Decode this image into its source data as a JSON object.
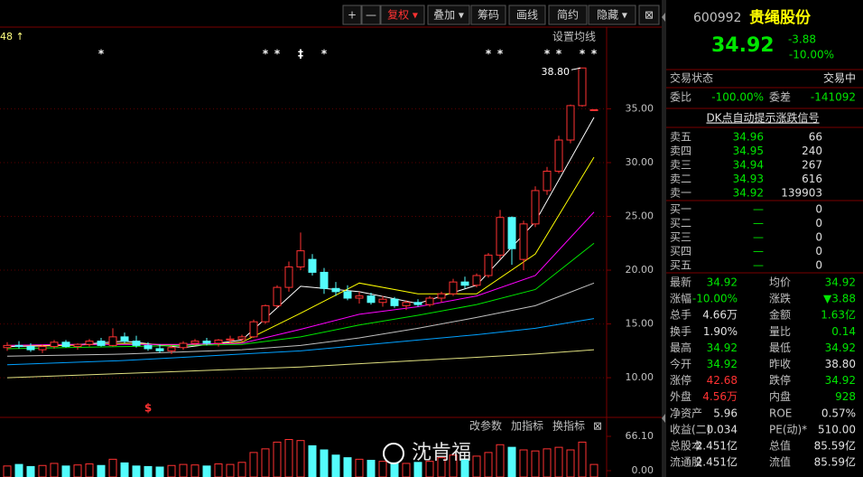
{
  "toolbar": [
    "+",
    "—",
    "复权 ▾",
    "叠加 ▾",
    "筹码",
    "画线",
    "简约",
    "隐藏 ▾",
    "⊠"
  ],
  "chart_data": {
    "type": "candlestick",
    "candles": [
      [
        12.8,
        13.3,
        12.5,
        13.0
      ],
      [
        13.0,
        13.4,
        12.7,
        12.9
      ],
      [
        12.9,
        13.2,
        12.4,
        12.6
      ],
      [
        12.6,
        13.1,
        12.3,
        12.9
      ],
      [
        12.9,
        13.5,
        12.7,
        13.3
      ],
      [
        13.3,
        13.5,
        12.8,
        12.9
      ],
      [
        12.9,
        13.2,
        12.6,
        13.1
      ],
      [
        13.1,
        13.6,
        12.9,
        13.4
      ],
      [
        13.4,
        13.7,
        12.9,
        13.0
      ],
      [
        13.0,
        14.6,
        12.9,
        13.8
      ],
      [
        13.8,
        14.2,
        13.2,
        13.4
      ],
      [
        13.4,
        13.9,
        12.8,
        13.0
      ],
      [
        13.0,
        13.3,
        12.5,
        12.7
      ],
      [
        12.7,
        13.1,
        12.3,
        12.5
      ],
      [
        12.5,
        13.0,
        12.2,
        12.8
      ],
      [
        12.8,
        13.4,
        12.6,
        13.2
      ],
      [
        13.2,
        13.6,
        13.0,
        13.4
      ],
      [
        13.4,
        13.7,
        13.0,
        13.2
      ],
      [
        13.2,
        13.6,
        12.9,
        13.5
      ],
      [
        13.5,
        13.9,
        13.2,
        13.6
      ],
      [
        13.6,
        14.0,
        13.3,
        13.8
      ],
      [
        13.8,
        15.4,
        13.7,
        15.2
      ],
      [
        15.2,
        16.8,
        15.0,
        16.7
      ],
      [
        16.7,
        18.6,
        16.5,
        18.4
      ],
      [
        18.4,
        20.8,
        18.0,
        20.3
      ],
      [
        20.3,
        23.5,
        20.0,
        21.8
      ],
      [
        21.0,
        21.5,
        19.5,
        19.8
      ],
      [
        19.8,
        20.2,
        17.8,
        18.3
      ],
      [
        18.3,
        18.9,
        17.6,
        18.0
      ],
      [
        18.0,
        18.6,
        17.2,
        17.4
      ],
      [
        17.4,
        18.0,
        16.9,
        17.6
      ],
      [
        17.6,
        17.9,
        16.8,
        17.0
      ],
      [
        17.0,
        17.6,
        16.6,
        17.3
      ],
      [
        17.3,
        17.5,
        16.5,
        16.7
      ],
      [
        16.7,
        17.2,
        16.3,
        17.0
      ],
      [
        17.0,
        17.3,
        16.6,
        16.8
      ],
      [
        16.8,
        17.6,
        16.6,
        17.4
      ],
      [
        17.4,
        18.0,
        17.0,
        17.8
      ],
      [
        17.8,
        19.2,
        17.6,
        18.9
      ],
      [
        18.9,
        19.4,
        18.3,
        18.6
      ],
      [
        18.6,
        19.7,
        18.4,
        19.5
      ],
      [
        19.5,
        21.6,
        19.3,
        21.4
      ],
      [
        21.4,
        25.6,
        21.0,
        24.9
      ],
      [
        24.9,
        25.0,
        20.5,
        22.0
      ],
      [
        21.0,
        24.6,
        20.0,
        24.3
      ],
      [
        24.3,
        27.8,
        24.0,
        27.4
      ],
      [
        27.4,
        29.6,
        27.0,
        29.2
      ],
      [
        29.2,
        32.5,
        29.0,
        32.1
      ],
      [
        32.1,
        35.4,
        31.8,
        35.3
      ],
      [
        35.3,
        38.8,
        35.2,
        38.8
      ],
      [
        34.92,
        34.92,
        34.92,
        34.92
      ]
    ],
    "up_color": "#ff3232",
    "down_color": "#54fcfc",
    "ylim": [
      6.9,
      42.6
    ],
    "yticks": [
      {
        "value": 10,
        "label": "10.00"
      },
      {
        "value": 15,
        "label": "15.00"
      },
      {
        "value": 20,
        "label": "20.00"
      },
      {
        "value": 25,
        "label": "25.00"
      },
      {
        "value": 30,
        "label": "30.00"
      },
      {
        "value": 35,
        "label": "35.00"
      }
    ],
    "grid": true,
    "ma_x": [
      0,
      5,
      10,
      15,
      20,
      25,
      30,
      35,
      40,
      45,
      50
    ],
    "ma": [
      {
        "color": "#ffffff",
        "values": [
          12.9,
          13.0,
          13.4,
          12.8,
          13.5,
          18.5,
          18.0,
          16.9,
          18.6,
          24.5,
          34.2
        ]
      },
      {
        "color": "#ffff00",
        "values": [
          13.0,
          13.0,
          13.2,
          13.0,
          13.3,
          16.0,
          18.8,
          17.8,
          17.8,
          21.5,
          30.5
        ]
      },
      {
        "color": "#ff00ff",
        "values": [
          13.0,
          13.1,
          13.1,
          13.1,
          13.2,
          14.5,
          15.9,
          16.6,
          17.6,
          19.5,
          25.4
        ]
      },
      {
        "color": "#00e600",
        "values": [
          12.7,
          12.8,
          12.9,
          13.0,
          13.1,
          13.8,
          14.9,
          15.8,
          16.8,
          18.2,
          22.5
        ]
      },
      {
        "color": "#c0c0c0",
        "values": [
          12.0,
          12.1,
          12.2,
          12.4,
          12.6,
          13.0,
          13.7,
          14.6,
          15.6,
          16.7,
          18.8
        ]
      },
      {
        "color": "#00a0ff",
        "values": [
          11.2,
          11.4,
          11.6,
          11.9,
          12.2,
          12.5,
          13.0,
          13.5,
          14.0,
          14.6,
          15.5
        ]
      },
      {
        "color": "#e0e080",
        "values": [
          10.0,
          10.2,
          10.4,
          10.6,
          10.8,
          11.0,
          11.3,
          11.6,
          11.9,
          12.2,
          12.6
        ]
      }
    ],
    "corner_note": "48 ↑",
    "ma_setting": "设置均线",
    "high_label": "38.80",
    "high_candle": 49,
    "markers": [
      {
        "label": "*",
        "candle": 8
      },
      {
        "label": "*",
        "candle": 22
      },
      {
        "label": "*",
        "candle": 23
      },
      {
        "label": "‡",
        "candle": 25
      },
      {
        "label": "*",
        "candle": 27
      },
      {
        "label": "*",
        "candle": 41
      },
      {
        "label": "*",
        "candle": 42
      },
      {
        "label": "*",
        "candle": 46
      },
      {
        "label": "*",
        "candle": 47
      },
      {
        "label": "*",
        "candle": 49
      },
      {
        "label": "*",
        "candle": 50
      }
    ],
    "signal": {
      "label": "$",
      "candle": 12
    },
    "volume": {
      "values": [
        9,
        12,
        8,
        10,
        14,
        9,
        11,
        13,
        10,
        22,
        15,
        9,
        8,
        7,
        10,
        12,
        11,
        9,
        13,
        12,
        16,
        35,
        42,
        55,
        60,
        58,
        48,
        40,
        30,
        25,
        22,
        20,
        18,
        15,
        14,
        16,
        18,
        25,
        30,
        22,
        28,
        35,
        50,
        45,
        40,
        38,
        42,
        45,
        40,
        55,
        12
      ],
      "ylim": [
        0,
        66.1
      ],
      "yticks": [
        {
          "value": 0,
          "label": "0.00"
        },
        {
          "value": 66.1,
          "label": "66.10"
        }
      ]
    },
    "indicator_buttons": [
      "改参数",
      "加指标",
      "换指标",
      "⊠"
    ],
    "watermark": "沈肯福"
  },
  "quote": {
    "code": "600992",
    "name": "贵绳股份",
    "price": "34.92",
    "change": "-3.88",
    "pct": "-10.00%",
    "status_label": "交易状态",
    "status": "交易中",
    "ratio": [
      "委比",
      "-100.00%",
      "委差",
      "-141092"
    ],
    "link": "DK点自动提示涨跌信号",
    "asks": [
      [
        "卖五",
        "34.96",
        "66"
      ],
      [
        "卖四",
        "34.95",
        "240"
      ],
      [
        "卖三",
        "34.94",
        "267"
      ],
      [
        "卖二",
        "34.93",
        "616"
      ],
      [
        "卖一",
        "34.92",
        "139903"
      ]
    ],
    "bids": [
      [
        "买一",
        "—",
        "0"
      ],
      [
        "买二",
        "—",
        "0"
      ],
      [
        "买三",
        "—",
        "0"
      ],
      [
        "买四",
        "—",
        "0"
      ],
      [
        "买五",
        "—",
        "0"
      ]
    ],
    "stats": [
      [
        "最新",
        "34.92",
        "均价",
        "34.92"
      ],
      [
        "涨幅",
        "-10.00%",
        "涨跌",
        "▼3.88"
      ],
      [
        "总手",
        "4.66万",
        "金额",
        "1.63亿"
      ],
      [
        "换手",
        "1.90%",
        "量比",
        "0.14"
      ],
      [
        "最高",
        "34.92",
        "最低",
        "34.92"
      ],
      [
        "今开",
        "34.92",
        "昨收",
        "38.80"
      ],
      [
        "涨停",
        "42.68",
        "跌停",
        "34.92"
      ],
      [
        "外盘",
        "4.56万",
        "内盘",
        "928"
      ],
      [
        "净资产",
        "5.96",
        "ROE",
        "0.57%"
      ],
      [
        "收益(二)",
        "0.034",
        "PE(动)*",
        "510.00"
      ],
      [
        "总股本",
        "2.451亿",
        "总值",
        "85.59亿"
      ],
      [
        "流通股",
        "2.451亿",
        "流值",
        "85.59亿"
      ]
    ],
    "stat_colors": [
      [
        "#00e600",
        "#00e600"
      ],
      [
        "#00e600",
        "#00e600"
      ],
      [
        "#e0e0e0",
        "#00e600"
      ],
      [
        "#e0e0e0",
        "#00e600"
      ],
      [
        "#00e600",
        "#00e600"
      ],
      [
        "#00e600",
        "#e0e0e0"
      ],
      [
        "#ff3232",
        "#00e600"
      ],
      [
        "#ff3232",
        "#00e600"
      ],
      [
        "#e0e0e0",
        "#e0e0e0"
      ],
      [
        "#e0e0e0",
        "#e0e0e0"
      ],
      [
        "#e0e0e0",
        "#e0e0e0"
      ],
      [
        "#e0e0e0",
        "#e0e0e0"
      ]
    ]
  }
}
